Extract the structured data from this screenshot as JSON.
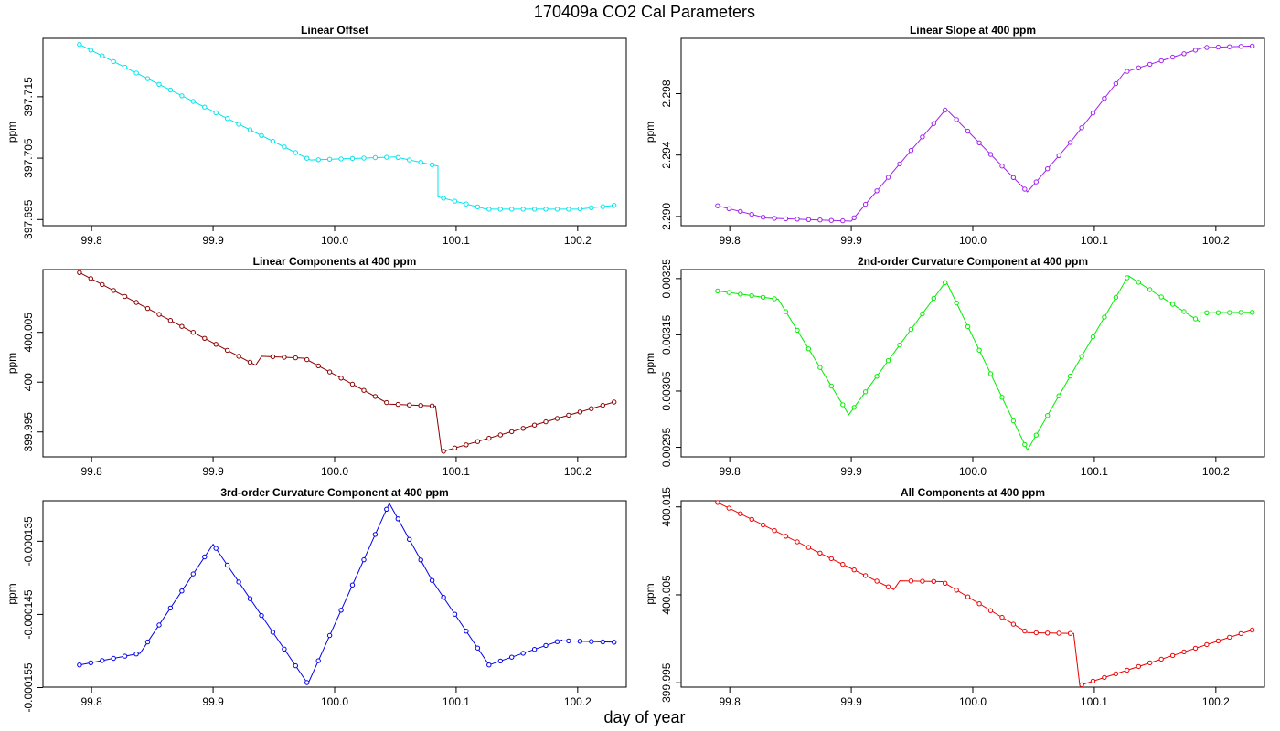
{
  "figure": {
    "title": "170409a   CO2 Cal Parameters",
    "xlabel": "day of year"
  },
  "chart_data": [
    {
      "type": "line",
      "title": "Linear Offset",
      "ylabel": "ppm",
      "xlim": [
        99.76,
        100.24
      ],
      "ylim": [
        397.694,
        397.7245
      ],
      "xticks": [
        "99.8",
        "99.9",
        "100.0",
        "100.1",
        "100.2"
      ],
      "yticks": [
        "397.695",
        "397.705",
        "397.715"
      ],
      "color": "#00e5ee",
      "series": [
        {
          "segments": [
            {
              "x": [
                99.79,
                99.98
              ],
              "y": [
                397.7235,
                397.7047
              ]
            },
            {
              "x": [
                99.98,
                100.05
              ],
              "y": [
                397.7047,
                397.7052
              ]
            },
            {
              "x": [
                100.05,
                100.085
              ],
              "y": [
                397.7052,
                397.7037
              ]
            },
            {
              "x": [
                100.085,
                100.125
              ],
              "y": [
                397.6987,
                397.6967
              ]
            },
            {
              "x": [
                100.125,
                100.2
              ],
              "y": [
                397.6967,
                397.6967
              ]
            },
            {
              "x": [
                100.2,
                100.23
              ],
              "y": [
                397.6967,
                397.6973
              ]
            }
          ]
        }
      ]
    },
    {
      "type": "line",
      "title": "Linear Slope at 400 ppm",
      "ylabel": "ppm",
      "xlim": [
        99.76,
        100.24
      ],
      "ylim": [
        2.2894,
        2.3016
      ],
      "xticks": [
        "99.8",
        "99.9",
        "100.0",
        "100.1",
        "100.2"
      ],
      "yticks": [
        "2.290",
        "2.294",
        "2.298"
      ],
      "color": "#a020f0",
      "series": [
        {
          "segments": [
            {
              "x": [
                99.79,
                99.83
              ],
              "y": [
                2.2907,
                2.2899
              ]
            },
            {
              "x": [
                99.83,
                99.9
              ],
              "y": [
                2.2899,
                2.2897
              ]
            },
            {
              "x": [
                99.9,
                99.978
              ],
              "y": [
                2.2897,
                2.297
              ]
            },
            {
              "x": [
                99.978,
                100.045
              ],
              "y": [
                2.297,
                2.2916
              ]
            },
            {
              "x": [
                100.045,
                100.08
              ],
              "y": [
                2.2916,
                2.2948
              ]
            },
            {
              "x": [
                100.08,
                100.125
              ],
              "y": [
                2.2948,
                2.2994
              ]
            },
            {
              "x": [
                100.125,
                100.19
              ],
              "y": [
                2.2994,
                2.301
              ]
            },
            {
              "x": [
                100.19,
                100.23
              ],
              "y": [
                2.301,
                2.3011
              ]
            }
          ]
        }
      ]
    },
    {
      "type": "line",
      "title": "Linear Components at 400 ppm",
      "ylabel": "ppm",
      "xlim": [
        99.76,
        100.24
      ],
      "ylim": [
        399.9925,
        400.0113
      ],
      "xticks": [
        "99.8",
        "99.9",
        "100.0",
        "100.1",
        "100.2"
      ],
      "yticks": [
        "399.995",
        "400",
        "400.005"
      ],
      "color": "#8b0000",
      "series": [
        {
          "segments": [
            {
              "x": [
                99.79,
                99.935
              ],
              "y": [
                400.011,
                400.0017
              ]
            },
            {
              "x": [
                99.94,
                99.975
              ],
              "y": [
                400.0026,
                400.0024
              ]
            },
            {
              "x": [
                99.975,
                100.045
              ],
              "y": [
                400.0024,
                399.9978
              ]
            },
            {
              "x": [
                100.045,
                100.083
              ],
              "y": [
                399.9978,
                399.9976
              ]
            },
            {
              "x": [
                100.088,
                100.23
              ],
              "y": [
                399.993,
                399.998
              ]
            }
          ]
        }
      ]
    },
    {
      "type": "line",
      "title": "2nd-order Curvature Component at 400 ppm",
      "ylabel": "ppm",
      "xlim": [
        99.76,
        100.24
      ],
      "ylim": [
        0.002933,
        0.003266
      ],
      "xticks": [
        "99.8",
        "99.9",
        "100.0",
        "100.1",
        "100.2"
      ],
      "yticks": [
        "0.00295",
        "0.00305",
        "0.00315",
        "0.00325"
      ],
      "color": "#00ee00",
      "series": [
        {
          "segments": [
            {
              "x": [
                99.79,
                99.84
              ],
              "y": [
                0.003228,
                0.003213
              ]
            },
            {
              "x": [
                99.84,
                99.898
              ],
              "y": [
                0.003213,
                0.003008
              ]
            },
            {
              "x": [
                99.898,
                99.978
              ],
              "y": [
                0.003008,
                0.003245
              ]
            },
            {
              "x": [
                99.978,
                100.045
              ],
              "y": [
                0.003245,
                0.002945
              ]
            },
            {
              "x": [
                100.045,
                100.128
              ],
              "y": [
                0.002945,
                0.003255
              ]
            },
            {
              "x": [
                100.128,
                100.187
              ],
              "y": [
                0.003255,
                0.003173
              ]
            },
            {
              "x": [
                100.187,
                100.23
              ],
              "y": [
                0.003189,
                0.00319
              ]
            }
          ]
        }
      ]
    },
    {
      "type": "line",
      "title": "3rd-order Curvature Component at 400 ppm",
      "ylabel": "ppm",
      "xlim": [
        99.76,
        100.24
      ],
      "ylim": [
        -0.00015494,
        -0.00012946
      ],
      "xticks": [
        "99.8",
        "99.9",
        "100.0",
        "100.1",
        "100.2"
      ],
      "yticks": [
        "-0.000155",
        "-0.000145",
        "-0.000135"
      ],
      "color": "#0000ee",
      "series": [
        {
          "segments": [
            {
              "x": [
                99.79,
                99.84
              ],
              "y": [
                -0.0001519,
                -0.0001503
              ]
            },
            {
              "x": [
                99.84,
                99.9
              ],
              "y": [
                -0.0001503,
                -0.0001354
              ]
            },
            {
              "x": [
                99.9,
                99.978
              ],
              "y": [
                -0.0001354,
                -0.0001545
              ]
            },
            {
              "x": [
                99.978,
                100.045
              ],
              "y": [
                -0.0001545,
                -0.0001298
              ]
            },
            {
              "x": [
                100.045,
                100.08
              ],
              "y": [
                -0.0001298,
                -0.0001403
              ]
            },
            {
              "x": [
                100.08,
                100.127
              ],
              "y": [
                -0.0001403,
                -0.0001519
              ]
            },
            {
              "x": [
                100.127,
                100.187
              ],
              "y": [
                -0.0001519,
                -0.0001485
              ]
            },
            {
              "x": [
                100.187,
                100.23
              ],
              "y": [
                -0.0001486,
                -0.0001488
              ]
            }
          ]
        }
      ]
    },
    {
      "type": "line",
      "title": "All Components at 400 ppm",
      "ylabel": "ppm",
      "xlim": [
        99.76,
        100.24
      ],
      "ylim": [
        399.9945,
        400.0157
      ],
      "xticks": [
        "99.8",
        "99.9",
        "100.0",
        "100.1",
        "100.2"
      ],
      "yticks": [
        "399.995",
        "400.005",
        "400.015"
      ],
      "color": "#ee0000",
      "series": [
        {
          "segments": [
            {
              "x": [
                99.79,
                99.935
              ],
              "y": [
                400.0155,
                400.0056
              ]
            },
            {
              "x": [
                99.94,
                99.975
              ],
              "y": [
                400.0066,
                400.0065
              ]
            },
            {
              "x": [
                99.975,
                100.045
              ],
              "y": [
                400.0065,
                400.0007
              ]
            },
            {
              "x": [
                100.045,
                100.083
              ],
              "y": [
                400.0007,
                400.0006
              ]
            },
            {
              "x": [
                100.088,
                100.23
              ],
              "y": [
                399.9947,
                400.001
              ]
            }
          ]
        }
      ]
    }
  ]
}
